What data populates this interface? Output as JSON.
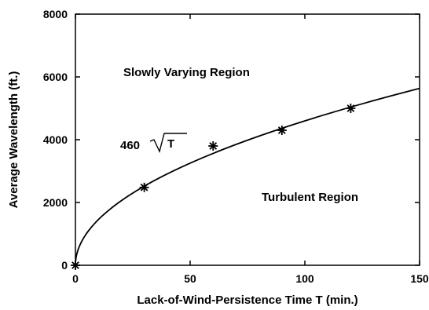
{
  "chart_data": {
    "type": "line",
    "xlabel": "Lack-of-Wind-Persistence Time T (min.)",
    "ylabel": "Average Wavelength (ft.)",
    "xlim": [
      0,
      150
    ],
    "ylim": [
      0,
      8000
    ],
    "xticks": [
      0,
      50,
      100,
      150
    ],
    "yticks": [
      0,
      2000,
      4000,
      6000,
      8000
    ],
    "xtick_labels": [
      "0",
      "50",
      "100",
      "150"
    ],
    "ytick_labels": [
      "0",
      "2000",
      "4000",
      "6000",
      "8000"
    ],
    "grid": false,
    "series": [
      {
        "kind": "curve",
        "label": "460 √T",
        "formula": "y = 460 * sqrt(x)",
        "x_range": [
          0,
          150
        ]
      },
      {
        "kind": "markers",
        "marker": "asterisk",
        "x": [
          0,
          30,
          60,
          90,
          120
        ],
        "y": [
          0,
          2480,
          3800,
          4300,
          5000
        ]
      }
    ],
    "annotations": [
      {
        "text": "Slowly Varying Region"
      },
      {
        "text": "Turbulent Region"
      },
      {
        "text": "460",
        "radicand": "T"
      }
    ]
  }
}
